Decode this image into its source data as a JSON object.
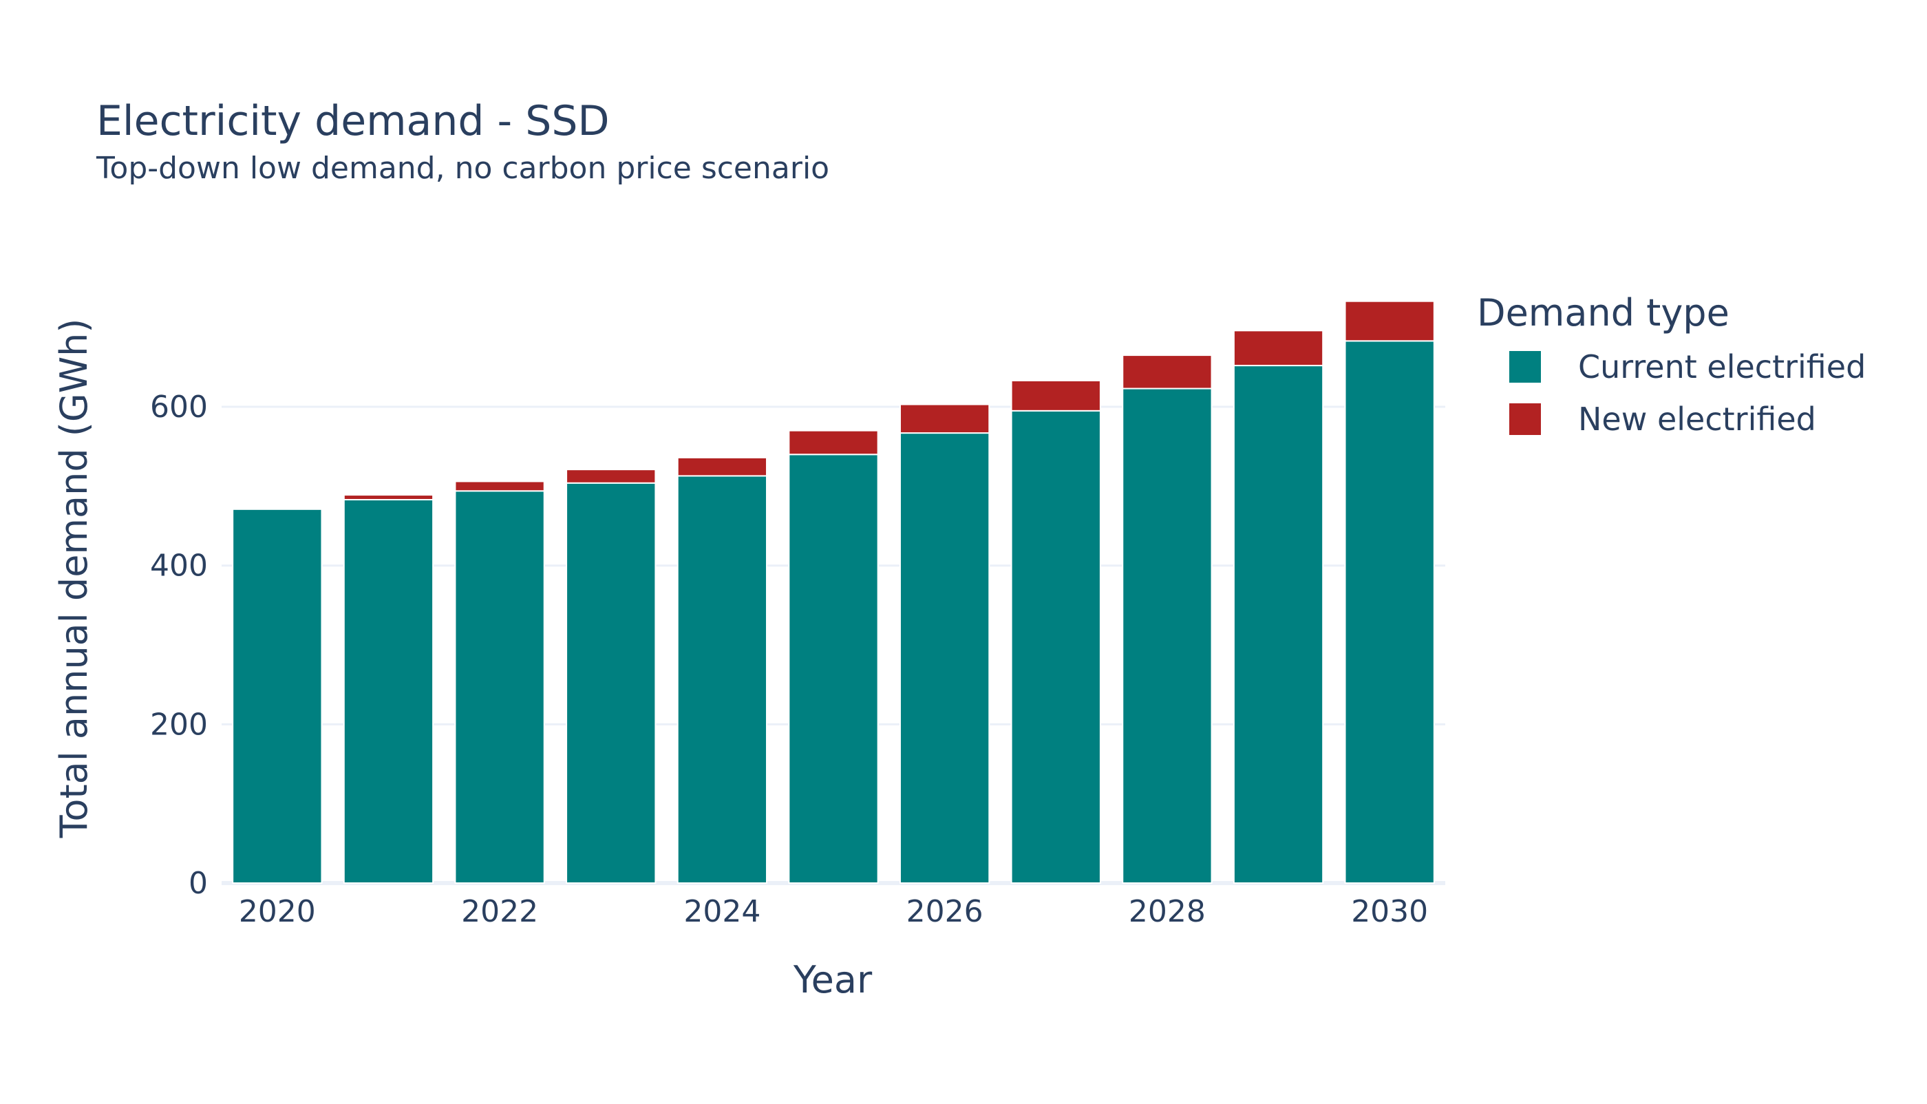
{
  "chart_data": {
    "type": "bar",
    "barmode": "stack",
    "title": "Electricity demand - SSD",
    "subtitle": "Top-down low demand, no carbon price scenario",
    "xlabel": "Year",
    "ylabel": "Total annual demand (GWh)",
    "x": [
      2020,
      2021,
      2022,
      2023,
      2024,
      2025,
      2026,
      2027,
      2028,
      2029,
      2030
    ],
    "x_ticks": [
      "2020",
      "2022",
      "2024",
      "2026",
      "2028",
      "2030"
    ],
    "y_ticks": [
      "0",
      "200",
      "400",
      "600"
    ],
    "ylim": [
      0,
      770
    ],
    "xlim": [
      2019.5,
      2030.5
    ],
    "grid": true,
    "legend": {
      "title": "Demand type",
      "placement": "right"
    },
    "series": [
      {
        "name": "Current electrified",
        "color": "#008080",
        "values": [
          471,
          483,
          494,
          504,
          513,
          540,
          567,
          595,
          623,
          652,
          683
        ]
      },
      {
        "name": "New electrified",
        "color": "#b22222",
        "values": [
          0,
          6,
          12,
          17,
          23,
          30,
          36,
          38,
          42,
          44,
          50
        ]
      }
    ]
  }
}
